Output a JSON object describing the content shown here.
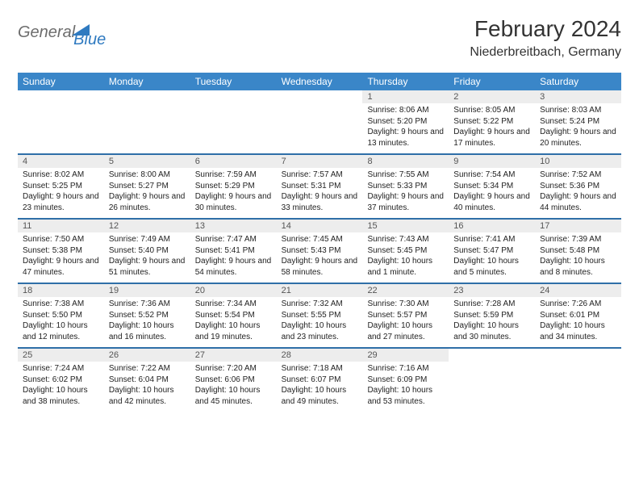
{
  "logo": {
    "general": "General",
    "blue": "Blue"
  },
  "title": "February 2024",
  "location": "Niederbreitbach, Germany",
  "colors": {
    "header_bg": "#3a86c8",
    "week_border": "#2f6fa8",
    "daynum_bg": "#ededed",
    "text": "#222222",
    "logo_gray": "#6d6d6d",
    "logo_blue": "#2f7ac0"
  },
  "day_names": [
    "Sunday",
    "Monday",
    "Tuesday",
    "Wednesday",
    "Thursday",
    "Friday",
    "Saturday"
  ],
  "weeks": [
    [
      {
        "empty": true
      },
      {
        "empty": true
      },
      {
        "empty": true
      },
      {
        "empty": true
      },
      {
        "n": "1",
        "sr": "8:06 AM",
        "ss": "5:20 PM",
        "dl": "9 hours and 13 minutes."
      },
      {
        "n": "2",
        "sr": "8:05 AM",
        "ss": "5:22 PM",
        "dl": "9 hours and 17 minutes."
      },
      {
        "n": "3",
        "sr": "8:03 AM",
        "ss": "5:24 PM",
        "dl": "9 hours and 20 minutes."
      }
    ],
    [
      {
        "n": "4",
        "sr": "8:02 AM",
        "ss": "5:25 PM",
        "dl": "9 hours and 23 minutes."
      },
      {
        "n": "5",
        "sr": "8:00 AM",
        "ss": "5:27 PM",
        "dl": "9 hours and 26 minutes."
      },
      {
        "n": "6",
        "sr": "7:59 AM",
        "ss": "5:29 PM",
        "dl": "9 hours and 30 minutes."
      },
      {
        "n": "7",
        "sr": "7:57 AM",
        "ss": "5:31 PM",
        "dl": "9 hours and 33 minutes."
      },
      {
        "n": "8",
        "sr": "7:55 AM",
        "ss": "5:33 PM",
        "dl": "9 hours and 37 minutes."
      },
      {
        "n": "9",
        "sr": "7:54 AM",
        "ss": "5:34 PM",
        "dl": "9 hours and 40 minutes."
      },
      {
        "n": "10",
        "sr": "7:52 AM",
        "ss": "5:36 PM",
        "dl": "9 hours and 44 minutes."
      }
    ],
    [
      {
        "n": "11",
        "sr": "7:50 AM",
        "ss": "5:38 PM",
        "dl": "9 hours and 47 minutes."
      },
      {
        "n": "12",
        "sr": "7:49 AM",
        "ss": "5:40 PM",
        "dl": "9 hours and 51 minutes."
      },
      {
        "n": "13",
        "sr": "7:47 AM",
        "ss": "5:41 PM",
        "dl": "9 hours and 54 minutes."
      },
      {
        "n": "14",
        "sr": "7:45 AM",
        "ss": "5:43 PM",
        "dl": "9 hours and 58 minutes."
      },
      {
        "n": "15",
        "sr": "7:43 AM",
        "ss": "5:45 PM",
        "dl": "10 hours and 1 minute."
      },
      {
        "n": "16",
        "sr": "7:41 AM",
        "ss": "5:47 PM",
        "dl": "10 hours and 5 minutes."
      },
      {
        "n": "17",
        "sr": "7:39 AM",
        "ss": "5:48 PM",
        "dl": "10 hours and 8 minutes."
      }
    ],
    [
      {
        "n": "18",
        "sr": "7:38 AM",
        "ss": "5:50 PM",
        "dl": "10 hours and 12 minutes."
      },
      {
        "n": "19",
        "sr": "7:36 AM",
        "ss": "5:52 PM",
        "dl": "10 hours and 16 minutes."
      },
      {
        "n": "20",
        "sr": "7:34 AM",
        "ss": "5:54 PM",
        "dl": "10 hours and 19 minutes."
      },
      {
        "n": "21",
        "sr": "7:32 AM",
        "ss": "5:55 PM",
        "dl": "10 hours and 23 minutes."
      },
      {
        "n": "22",
        "sr": "7:30 AM",
        "ss": "5:57 PM",
        "dl": "10 hours and 27 minutes."
      },
      {
        "n": "23",
        "sr": "7:28 AM",
        "ss": "5:59 PM",
        "dl": "10 hours and 30 minutes."
      },
      {
        "n": "24",
        "sr": "7:26 AM",
        "ss": "6:01 PM",
        "dl": "10 hours and 34 minutes."
      }
    ],
    [
      {
        "n": "25",
        "sr": "7:24 AM",
        "ss": "6:02 PM",
        "dl": "10 hours and 38 minutes."
      },
      {
        "n": "26",
        "sr": "7:22 AM",
        "ss": "6:04 PM",
        "dl": "10 hours and 42 minutes."
      },
      {
        "n": "27",
        "sr": "7:20 AM",
        "ss": "6:06 PM",
        "dl": "10 hours and 45 minutes."
      },
      {
        "n": "28",
        "sr": "7:18 AM",
        "ss": "6:07 PM",
        "dl": "10 hours and 49 minutes."
      },
      {
        "n": "29",
        "sr": "7:16 AM",
        "ss": "6:09 PM",
        "dl": "10 hours and 53 minutes."
      },
      {
        "empty": true
      },
      {
        "empty": true
      }
    ]
  ],
  "labels": {
    "sunrise": "Sunrise: ",
    "sunset": "Sunset: ",
    "daylight": "Daylight: "
  }
}
